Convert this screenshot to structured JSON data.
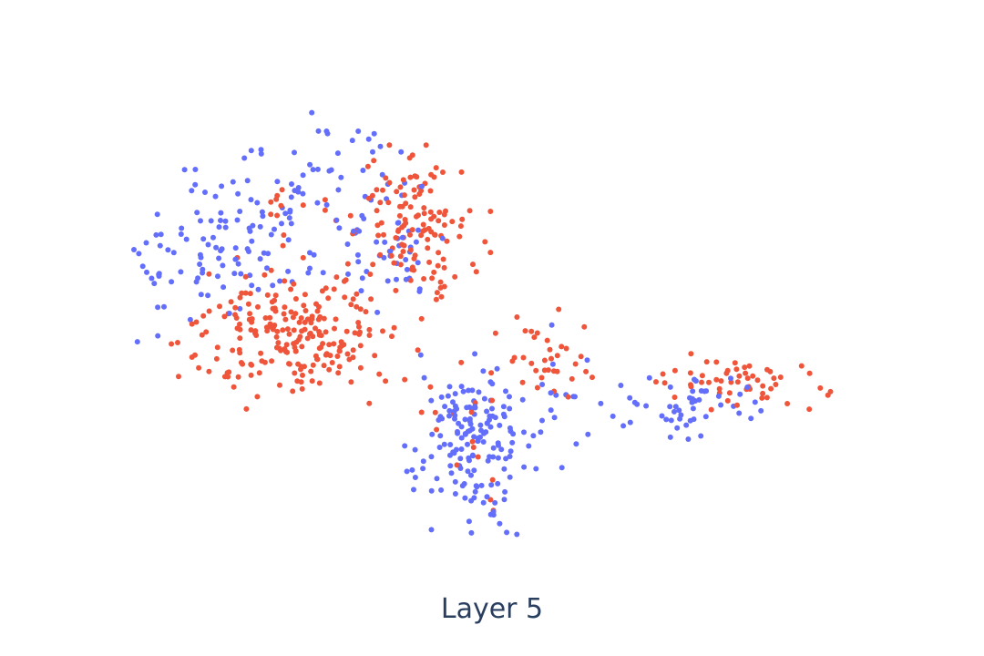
{
  "chart_data": {
    "type": "scatter",
    "title": "Layer 5",
    "xlabel": "",
    "ylabel": "",
    "grid": false,
    "legend": "none",
    "axes_visible": false,
    "xlim": [
      0,
      100
    ],
    "ylim": [
      0,
      60
    ],
    "point_colors": {
      "blue": "#636efa",
      "red": "#ef553b"
    },
    "clusters": [
      {
        "color": "blue",
        "count": 75,
        "center": [
          19,
          39.5
        ],
        "spread": [
          6,
          4
        ],
        "seed": 11
      },
      {
        "color": "blue",
        "count": 45,
        "center": [
          27,
          48.5
        ],
        "spread": [
          6,
          3
        ],
        "seed": 12
      },
      {
        "color": "blue",
        "count": 25,
        "center": [
          9,
          37.5
        ],
        "spread": [
          4,
          2.5
        ],
        "seed": 13
      },
      {
        "color": "blue",
        "count": 40,
        "center": [
          37,
          38
        ],
        "spread": [
          3,
          3
        ],
        "seed": 14
      },
      {
        "color": "blue",
        "count": 150,
        "center": [
          47,
          15
        ],
        "spread": [
          3.5,
          5
        ],
        "seed": 15
      },
      {
        "color": "blue",
        "count": 50,
        "center": [
          75,
          19
        ],
        "spread": [
          5,
          2
        ],
        "seed": 16
      },
      {
        "color": "blue",
        "count": 30,
        "center": [
          55,
          19
        ],
        "spread": [
          5,
          5
        ],
        "seed": 17
      },
      {
        "color": "blue",
        "count": 10,
        "center": [
          6.5,
          34
        ],
        "spread": [
          1.5,
          5
        ],
        "seed": 18
      },
      {
        "color": "red",
        "count": 225,
        "center": [
          24,
          28
        ],
        "spread": [
          7,
          4
        ],
        "seed": 21
      },
      {
        "color": "red",
        "count": 130,
        "center": [
          39,
          42
        ],
        "spread": [
          4.5,
          4
        ],
        "seed": 22
      },
      {
        "color": "red",
        "count": 55,
        "center": [
          81,
          22
        ],
        "spread": [
          6,
          1.8
        ],
        "seed": 23
      },
      {
        "color": "red",
        "count": 35,
        "center": [
          57,
          25
        ],
        "spread": [
          3.5,
          3
        ],
        "seed": 24
      },
      {
        "color": "red",
        "count": 15,
        "center": [
          46,
          15
        ],
        "spread": [
          3,
          6
        ],
        "seed": 25
      },
      {
        "color": "red",
        "count": 10,
        "center": [
          22,
          43
        ],
        "spread": [
          1.5,
          2
        ],
        "seed": 26
      }
    ]
  }
}
